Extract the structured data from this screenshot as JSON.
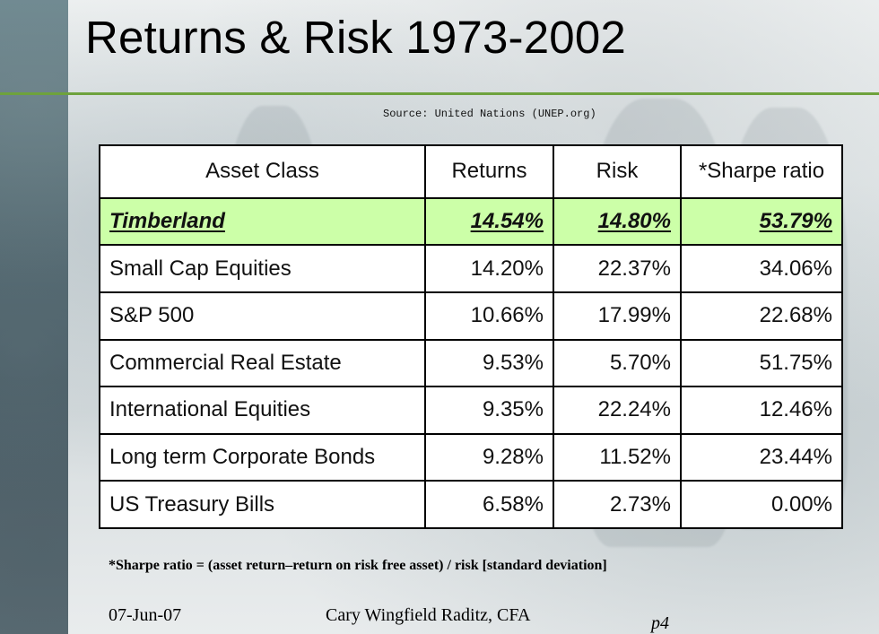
{
  "slide": {
    "title": "Returns & Risk 1973-2002",
    "source": "Source: United Nations (UNEP.org)",
    "table": {
      "headers": [
        "Asset Class",
        "Returns",
        "Risk",
        "*Sharpe ratio"
      ],
      "rows": [
        {
          "asset_class": "Timberland",
          "returns": "14.54%",
          "risk": "14.80%",
          "sharpe_ratio": "53.79%"
        },
        {
          "asset_class": "Small Cap Equities",
          "returns": "14.20%",
          "risk": "22.37%",
          "sharpe_ratio": "34.06%"
        },
        {
          "asset_class": "S&P 500",
          "returns": "10.66%",
          "risk": "17.99%",
          "sharpe_ratio": "22.68%"
        },
        {
          "asset_class": "Commercial Real Estate",
          "returns": "9.53%",
          "risk": "5.70%",
          "sharpe_ratio": "51.75%"
        },
        {
          "asset_class": "International Equities",
          "returns": "9.35%",
          "risk": "22.24%",
          "sharpe_ratio": "12.46%"
        },
        {
          "asset_class": "Long term Corporate Bonds",
          "returns": "9.28%",
          "risk": "11.52%",
          "sharpe_ratio": "23.44%"
        },
        {
          "asset_class": "US Treasury Bills",
          "returns": "6.58%",
          "risk": "2.73%",
          "sharpe_ratio": "0.00%"
        }
      ]
    },
    "note": "*Sharpe ratio = (asset return–return on risk free asset) / risk [standard deviation]",
    "footer": {
      "date": "07-Jun-07",
      "author": "Cary Wingfield Raditz, CFA",
      "page": "p4"
    },
    "colors": {
      "accent_line": "#6ea23d",
      "highlight_row": "#ccffa8"
    }
  }
}
